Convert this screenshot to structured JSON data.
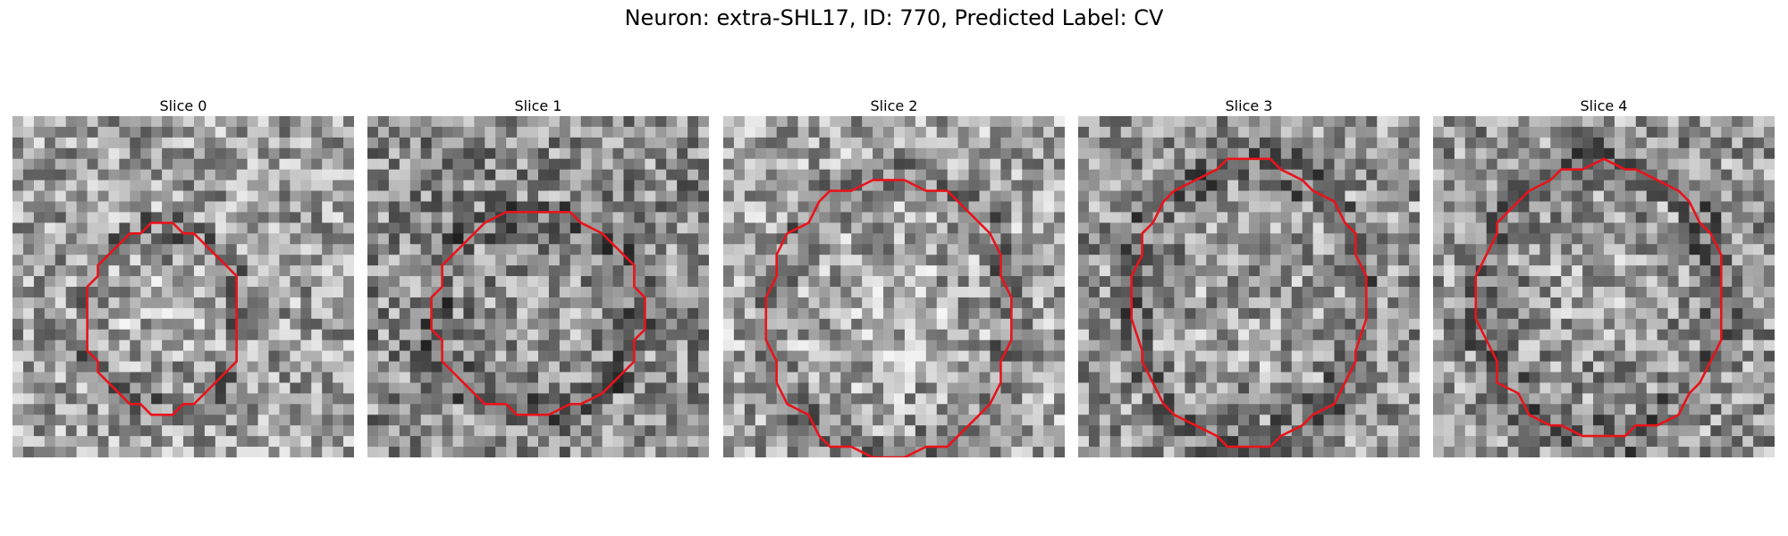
{
  "figure": {
    "title": "Neuron: extra-SHL17, ID: 770, Predicted Label: CV",
    "contour_color": "#e8141b"
  },
  "panels": [
    {
      "title": "Slice 0"
    },
    {
      "title": "Slice 1"
    },
    {
      "title": "Slice 2"
    },
    {
      "title": "Slice 3"
    },
    {
      "title": "Slice 4"
    }
  ]
}
